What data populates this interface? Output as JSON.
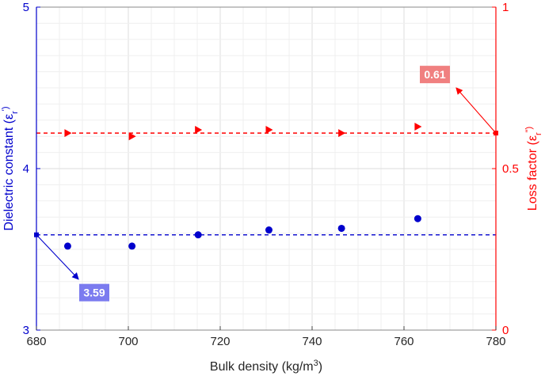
{
  "chart_data": {
    "type": "scatter",
    "x_axis": {
      "label": "Bulk density (kg/m",
      "label_superscript": "3",
      "label_suffix": ")",
      "range": [
        680,
        780
      ],
      "ticks": [
        680,
        700,
        720,
        740,
        760,
        780
      ],
      "tick_labels": [
        "680",
        "700",
        "720",
        "740",
        "760",
        "780"
      ]
    },
    "y_left": {
      "label_main": "Dielectric constant (ε",
      "label_sub": "r",
      "label_end": "')",
      "range": [
        3,
        5
      ],
      "ticks": [
        3,
        4,
        5
      ],
      "tick_labels": [
        "3",
        "4",
        "5"
      ],
      "color": "#0000cc"
    },
    "y_right": {
      "label_main": "Loss factor (ε",
      "label_sub": "r",
      "label_end": "\")",
      "range": [
        0,
        1
      ],
      "ticks": [
        0,
        0.5,
        1
      ],
      "tick_labels": [
        "0",
        "0.5",
        "1"
      ],
      "color": "#ff0000"
    },
    "grid": true,
    "series": [
      {
        "axis": "left",
        "marker": "circle",
        "color": "#0000cc",
        "x": [
          686.8,
          700.8,
          715.2,
          730.6,
          746.4,
          763.0
        ],
        "y": [
          3.52,
          3.52,
          3.59,
          3.62,
          3.63,
          3.69
        ],
        "mean": 3.59
      },
      {
        "axis": "right",
        "marker": "triangle-right",
        "color": "#ff0000",
        "x": [
          686.8,
          700.8,
          715.2,
          730.6,
          746.4,
          763.0
        ],
        "y": [
          0.61,
          0.6,
          0.62,
          0.62,
          0.61,
          0.63
        ],
        "mean": 0.61
      }
    ],
    "annotations": [
      {
        "text": "3.59",
        "axis": "left",
        "x": 680,
        "y": 3.59,
        "box_color": "#7b7bef"
      },
      {
        "text": "0.61",
        "axis": "right",
        "x": 780,
        "y": 0.61,
        "box_color": "#f08080"
      }
    ]
  }
}
